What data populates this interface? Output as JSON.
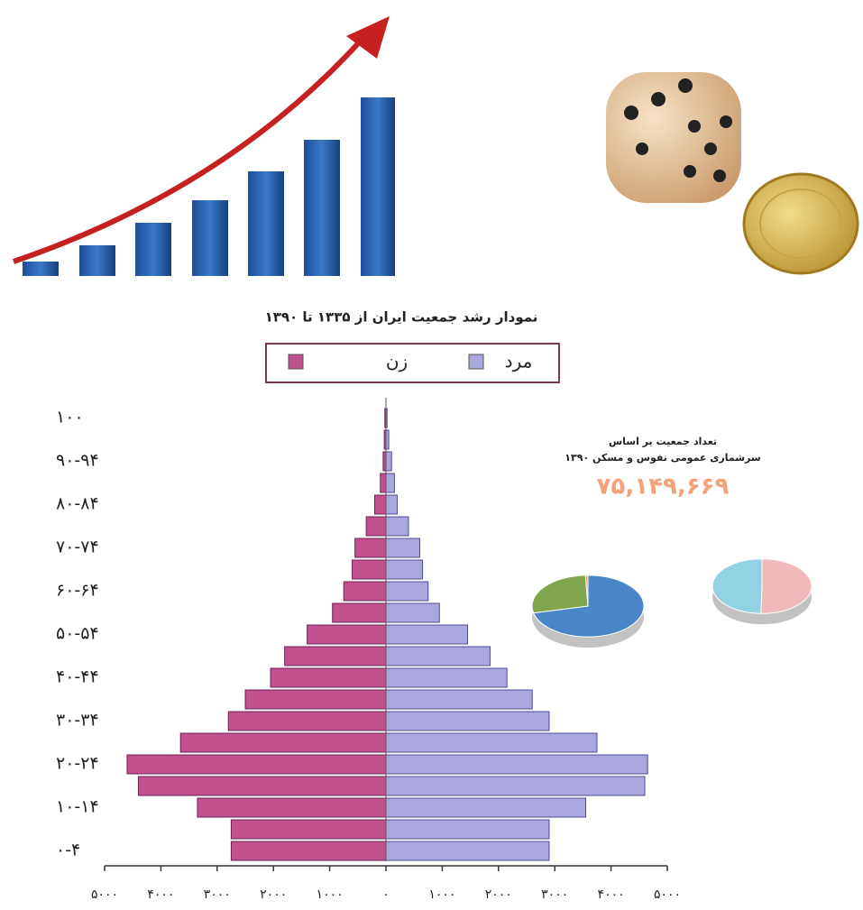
{
  "caption": "نمودار رشد جمعیت ایران از ۱۳۳۵ تا ۱۳۹۰",
  "infographic": {
    "title_lines": [
      "تعداد جمعیت بر اساس",
      "سرشماری عمومی نفوس و مسکن ۱۳۹۰"
    ],
    "total": "۷۵,۱۴۹,۶۶۹"
  },
  "chart_data": [
    {
      "type": "pyramid",
      "categories": [
        "۰-۴",
        null,
        "۱۰-۱۴",
        null,
        "۲۰-۲۴",
        null,
        "۳۰-۳۴",
        null,
        "۴۰-۴۴",
        null,
        "۵۰-۵۴",
        null,
        "۶۰-۶۴",
        null,
        "۷۰-۷۴",
        null,
        "۸۰-۸۴",
        null,
        "۹۰-۹۴",
        null,
        "۱۰۰"
      ],
      "series": [
        {
          "name": "مرد",
          "color": "#aaa7de",
          "side": "right",
          "values": [
            2900,
            2900,
            3550,
            4600,
            4650,
            3750,
            2900,
            2600,
            2150,
            1850,
            1450,
            950,
            750,
            650,
            600,
            400,
            200,
            150,
            100,
            50,
            20
          ]
        },
        {
          "name": "زن",
          "color": "#c2518f",
          "side": "left",
          "values": [
            2750,
            2750,
            3350,
            4400,
            4600,
            3650,
            2800,
            2500,
            2050,
            1800,
            1400,
            950,
            750,
            600,
            550,
            350,
            200,
            100,
            50,
            30,
            20
          ]
        }
      ],
      "xlim": [
        -5000,
        5000
      ],
      "xticks": [
        {
          "value": -5000,
          "label": "۵۰۰۰"
        },
        {
          "value": -4000,
          "label": "۴۰۰۰"
        },
        {
          "value": -3000,
          "label": "۳۰۰۰"
        },
        {
          "value": -2000,
          "label": "۲۰۰۰"
        },
        {
          "value": -1000,
          "label": "۱۰۰۰"
        },
        {
          "value": 0,
          "label": "۰"
        },
        {
          "value": 1000,
          "label": "۱۰۰۰"
        },
        {
          "value": 2000,
          "label": "۲۰۰۰"
        },
        {
          "value": 3000,
          "label": "۳۰۰۰"
        },
        {
          "value": 4000,
          "label": "۴۰۰۰"
        },
        {
          "value": 5000,
          "label": "۵۰۰۰"
        }
      ]
    },
    {
      "type": "pie",
      "values": [
        71.4,
        27.9,
        0.7
      ],
      "colors": [
        "#4a86c8",
        "#7fa64c",
        "#e8a040"
      ]
    },
    {
      "type": "pie",
      "values": [
        50.4,
        49.6
      ],
      "colors": [
        "#f0b9bb",
        "#92d2e2"
      ]
    }
  ]
}
